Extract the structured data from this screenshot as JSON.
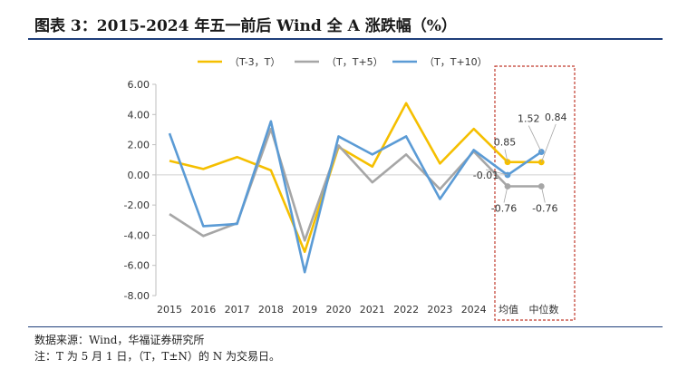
{
  "header": {
    "title": "图表 3：2015-2024 年五一前后 Wind 全 A 涨跌幅（%）"
  },
  "footer": {
    "source": "数据来源：Wind，华福证券研究所",
    "note": "注：T 为 5 月 1 日，（T，T±N）的 N 为交易日。"
  },
  "chart_data": {
    "type": "line",
    "categories": [
      "2015",
      "2016",
      "2017",
      "2018",
      "2019",
      "2020",
      "2021",
      "2022",
      "2023",
      "2024",
      "均值",
      "中位数"
    ],
    "ylim": [
      -8,
      6
    ],
    "yticks": [
      "6.00",
      "4.00",
      "2.00",
      "0.00",
      "-2.00",
      "-4.00",
      "-6.00",
      "-8.00"
    ],
    "ytick_values": [
      6,
      4,
      2,
      0,
      -2,
      -4,
      -6,
      -8
    ],
    "grid": false,
    "legend_position": "top",
    "highlight_box": [
      "均值",
      "中位数"
    ],
    "series": [
      {
        "name": "（T-3，T）",
        "color": "#f5bf00",
        "values": [
          0.93,
          0.39,
          1.18,
          0.3,
          -5.1,
          1.85,
          0.55,
          4.75,
          0.75,
          3.05,
          0.85,
          0.84
        ]
      },
      {
        "name": "（T，T+5）",
        "color": "#a6a6a6",
        "values": [
          -2.6,
          -4.05,
          -3.2,
          3.05,
          -4.35,
          1.95,
          -0.5,
          1.35,
          -0.95,
          1.55,
          -0.76,
          -0.76
        ]
      },
      {
        "name": "（T，T+10）",
        "color": "#5b9bd5",
        "values": [
          2.75,
          -3.4,
          -3.25,
          3.55,
          -6.45,
          2.55,
          1.35,
          2.55,
          -1.6,
          1.65,
          -0.01,
          1.52
        ]
      }
    ],
    "data_labels": [
      {
        "series": 0,
        "category": "均值",
        "text": "0.85"
      },
      {
        "series": 0,
        "category": "中位数",
        "text": "0.84"
      },
      {
        "series": 1,
        "category": "均值",
        "text": "-0.76"
      },
      {
        "series": 1,
        "category": "中位数",
        "text": "-0.76"
      },
      {
        "series": 2,
        "category": "均值",
        "text": "-0.01"
      },
      {
        "series": 2,
        "category": "中位数",
        "text": "1.52"
      }
    ]
  }
}
